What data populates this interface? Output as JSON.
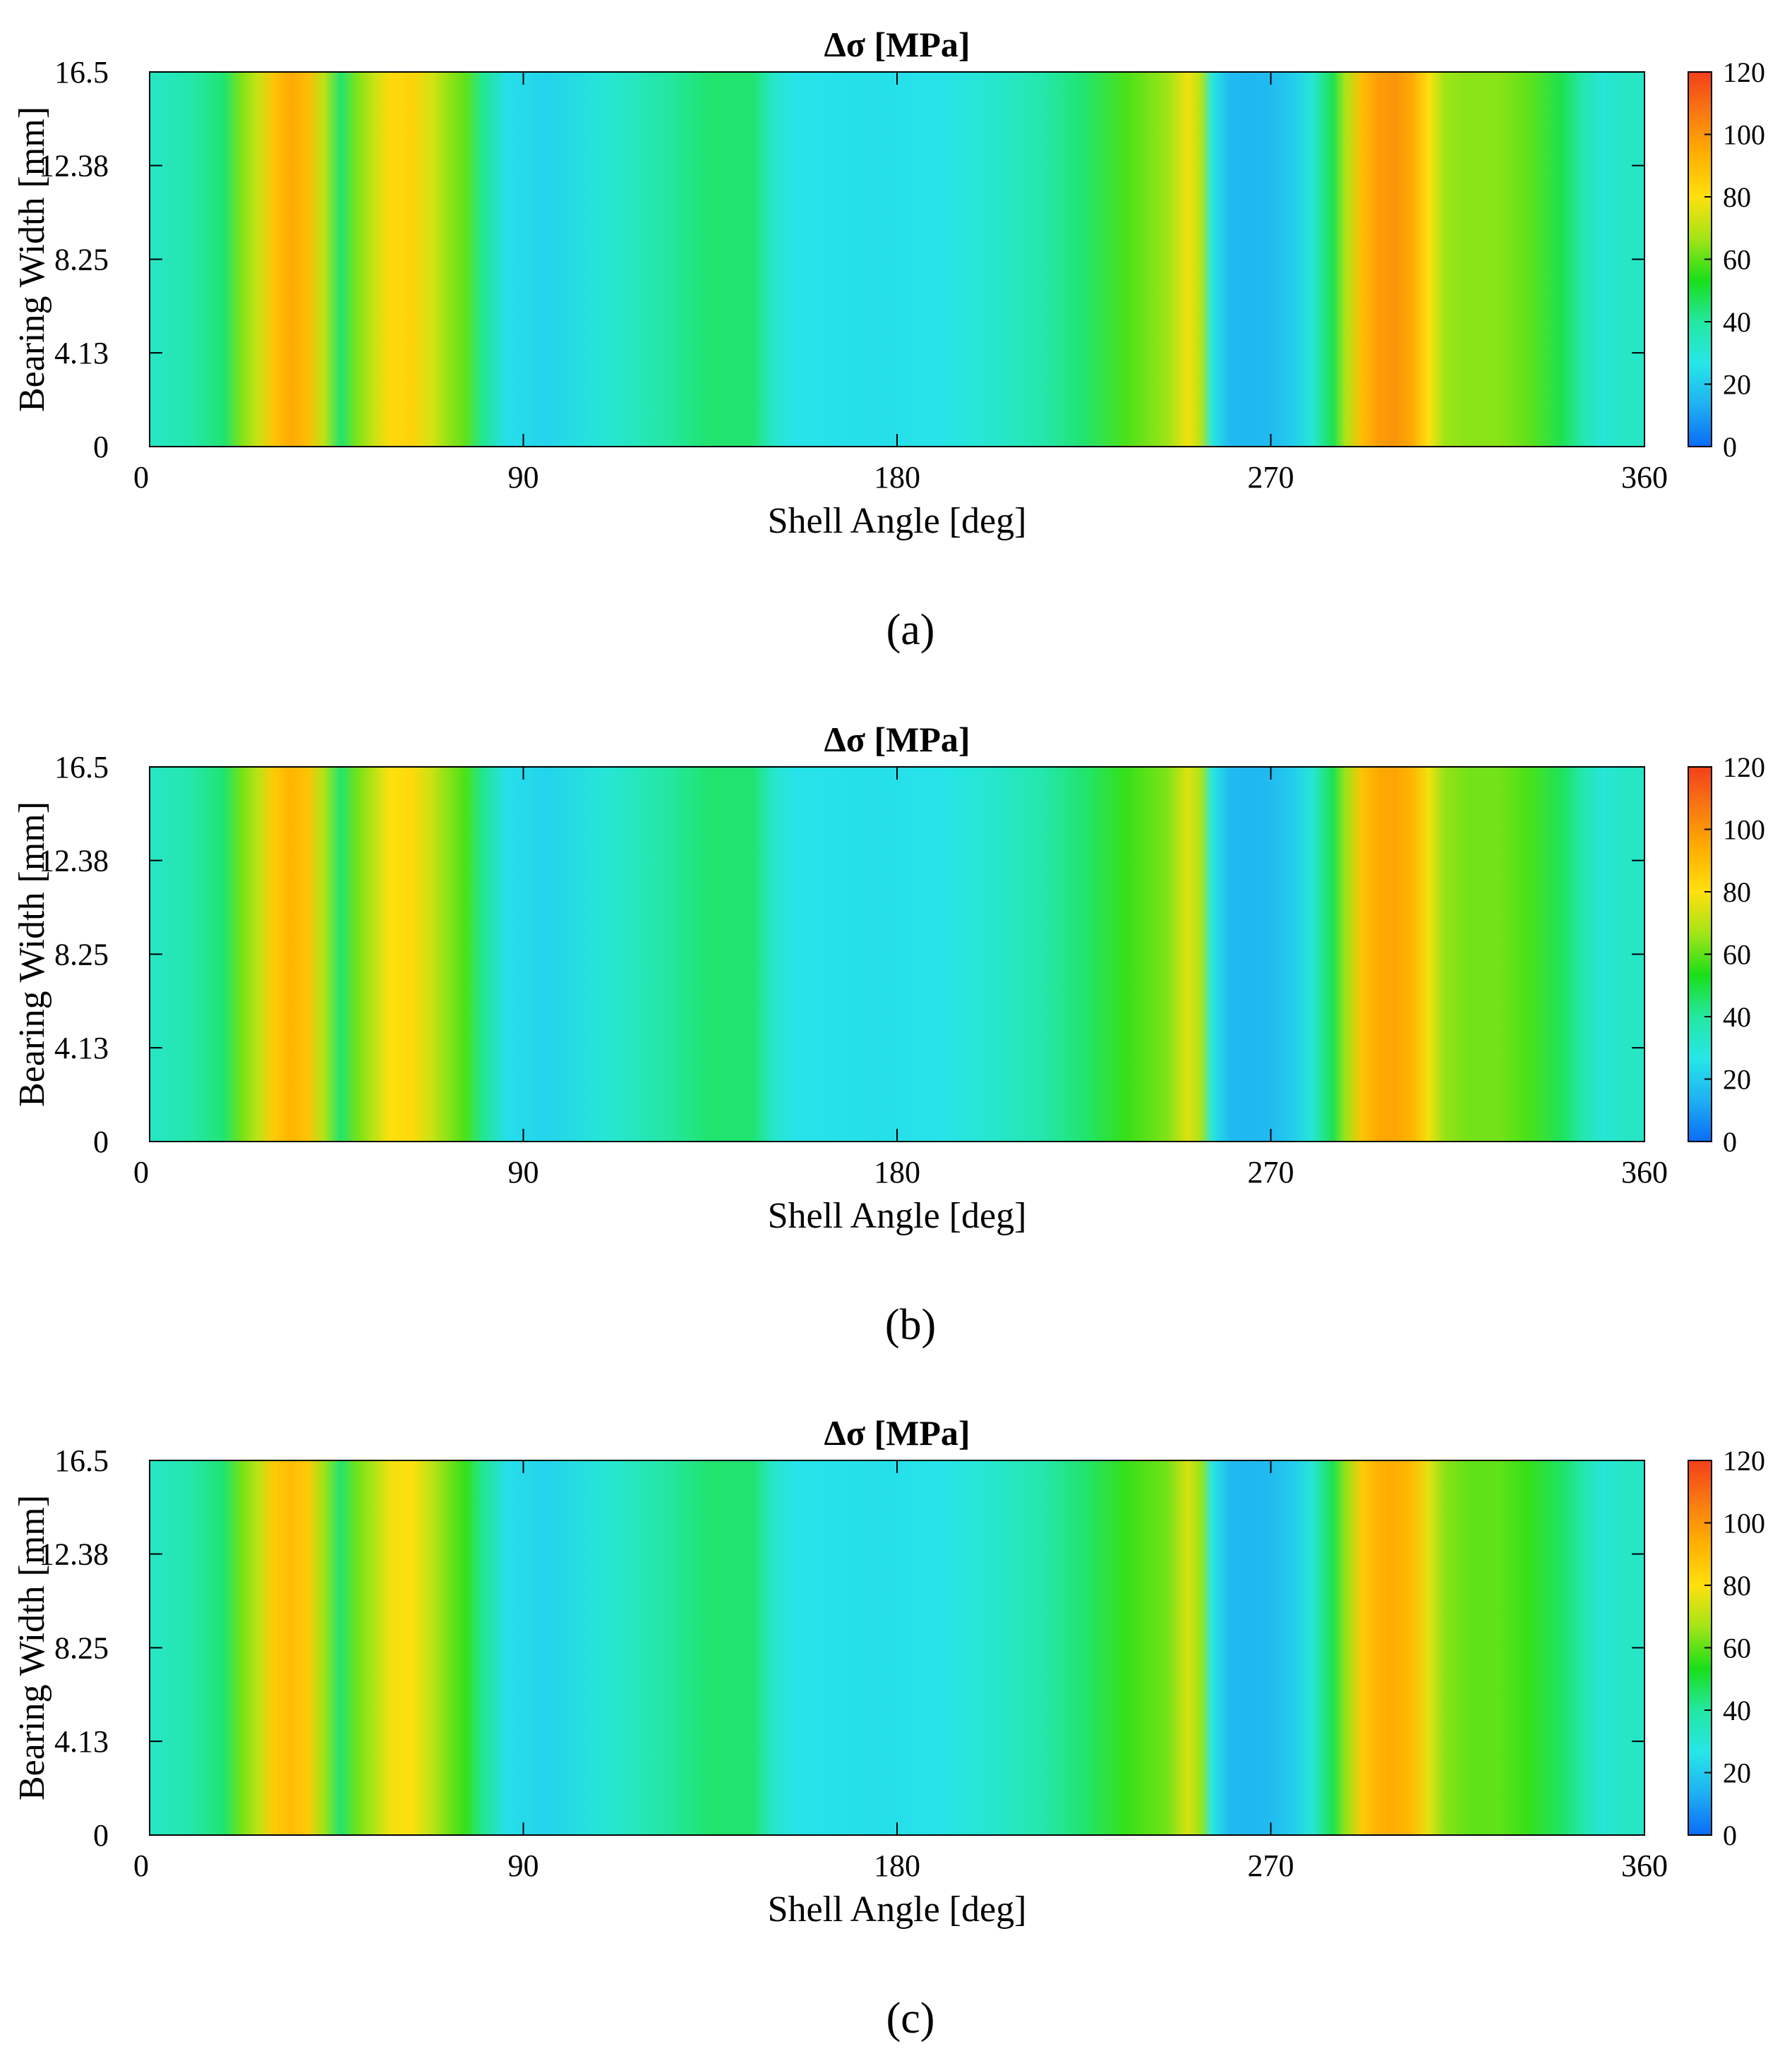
{
  "colors": {
    "colormap": [
      "#0a6cf7",
      "#1fb0f2",
      "#27e6e8",
      "#24e7a1",
      "#19df19",
      "#a4e417",
      "#ffe00e",
      "#ffb000",
      "#f97a12",
      "#f3401a"
    ],
    "axis": "#000000",
    "background": "#ffffff"
  },
  "chart_data": [
    {
      "type": "heatmap",
      "panel_label": "(a)",
      "title": "Δσ [MPa]",
      "xlabel": "Shell Angle [deg]",
      "ylabel": "Bearing Width [mm]",
      "xlim": [
        0,
        360
      ],
      "ylim": [
        0,
        16.5
      ],
      "xticks": [
        0,
        90,
        180,
        270,
        360
      ],
      "xtick_labels": [
        "0",
        "90",
        "180",
        "270",
        "360"
      ],
      "yticks": [
        0,
        4.13,
        8.25,
        12.38,
        16.5
      ],
      "ytick_labels": [
        "0",
        "4.13",
        "8.25",
        "12.38",
        "16.5"
      ],
      "colorbar": {
        "min": 0,
        "max": 120,
        "ticks": [
          0,
          20,
          40,
          60,
          80,
          100,
          120
        ],
        "tick_labels": [
          "0",
          "20",
          "40",
          "60",
          "80",
          "100",
          "120"
        ]
      },
      "angle_profile_deg": [
        0,
        10,
        18,
        22,
        26,
        30,
        34,
        38,
        42,
        46,
        50,
        54,
        58,
        63,
        68,
        72,
        76,
        80,
        86,
        95,
        110,
        125,
        135,
        145,
        150,
        155,
        175,
        190,
        200,
        215,
        225,
        235,
        245,
        250,
        253,
        256,
        260,
        265,
        270,
        275,
        280,
        285,
        288,
        292,
        296,
        300,
        304,
        308,
        312,
        318,
        325,
        332,
        340,
        345,
        350,
        355,
        360
      ],
      "delta_sigma_mpa": [
        33,
        38,
        45,
        63,
        72,
        88,
        95,
        90,
        70,
        45,
        63,
        72,
        82,
        84,
        74,
        65,
        60,
        42,
        25,
        22,
        30,
        40,
        45,
        45,
        33,
        26,
        25,
        26,
        30,
        38,
        45,
        58,
        66,
        78,
        70,
        28,
        16,
        15,
        16,
        20,
        30,
        48,
        68,
        90,
        98,
        100,
        95,
        80,
        66,
        64,
        64,
        60,
        48,
        38,
        30,
        33,
        33
      ]
    },
    {
      "type": "heatmap",
      "panel_label": "(b)",
      "title": "Δσ [MPa]",
      "xlabel": "Shell Angle [deg]",
      "ylabel": "Bearing Width [mm]",
      "xlim": [
        0,
        360
      ],
      "ylim": [
        0,
        16.5
      ],
      "xticks": [
        0,
        90,
        180,
        270,
        360
      ],
      "xtick_labels": [
        "0",
        "90",
        "180",
        "270",
        "360"
      ],
      "yticks": [
        0,
        4.13,
        8.25,
        12.38,
        16.5
      ],
      "ytick_labels": [
        "0",
        "4.13",
        "8.25",
        "12.38",
        "16.5"
      ],
      "colorbar": {
        "min": 0,
        "max": 120,
        "ticks": [
          0,
          20,
          40,
          60,
          80,
          100,
          120
        ],
        "tick_labels": [
          "0",
          "20",
          "40",
          "60",
          "80",
          "100",
          "120"
        ]
      },
      "angle_profile_deg": [
        0,
        10,
        18,
        22,
        26,
        30,
        34,
        38,
        42,
        46,
        50,
        54,
        58,
        63,
        68,
        72,
        76,
        80,
        86,
        95,
        110,
        125,
        135,
        145,
        150,
        155,
        175,
        190,
        200,
        215,
        225,
        235,
        245,
        250,
        253,
        256,
        260,
        265,
        270,
        275,
        280,
        285,
        288,
        292,
        296,
        300,
        304,
        308,
        312,
        318,
        325,
        332,
        340,
        345,
        350,
        355,
        360
      ],
      "delta_sigma_mpa": [
        33,
        38,
        45,
        62,
        70,
        86,
        92,
        88,
        68,
        45,
        62,
        70,
        80,
        82,
        72,
        64,
        58,
        42,
        25,
        22,
        30,
        40,
        45,
        45,
        33,
        26,
        25,
        26,
        30,
        38,
        45,
        56,
        63,
        75,
        68,
        28,
        16,
        15,
        16,
        20,
        30,
        48,
        66,
        88,
        95,
        96,
        92,
        78,
        65,
        62,
        62,
        58,
        47,
        38,
        30,
        33,
        33
      ]
    },
    {
      "type": "heatmap",
      "panel_label": "(c)",
      "title": "Δσ [MPa]",
      "xlabel": "Shell Angle [deg]",
      "ylabel": "Bearing Width [mm]",
      "xlim": [
        0,
        360
      ],
      "ylim": [
        0,
        16.5
      ],
      "xticks": [
        0,
        90,
        180,
        270,
        360
      ],
      "xtick_labels": [
        "0",
        "90",
        "180",
        "270",
        "360"
      ],
      "yticks": [
        0,
        4.13,
        8.25,
        12.38,
        16.5
      ],
      "ytick_labels": [
        "0",
        "4.13",
        "8.25",
        "12.38",
        "16.5"
      ],
      "colorbar": {
        "min": 0,
        "max": 120,
        "ticks": [
          0,
          20,
          40,
          60,
          80,
          100,
          120
        ],
        "tick_labels": [
          "0",
          "20",
          "40",
          "60",
          "80",
          "100",
          "120"
        ]
      },
      "angle_profile_deg": [
        0,
        10,
        18,
        22,
        26,
        30,
        34,
        38,
        42,
        46,
        50,
        54,
        58,
        63,
        68,
        72,
        76,
        80,
        86,
        95,
        110,
        125,
        135,
        145,
        150,
        155,
        175,
        190,
        200,
        215,
        225,
        235,
        245,
        250,
        253,
        256,
        260,
        265,
        270,
        275,
        280,
        285,
        288,
        292,
        296,
        300,
        304,
        308,
        312,
        318,
        325,
        332,
        340,
        345,
        350,
        355,
        360
      ],
      "delta_sigma_mpa": [
        33,
        38,
        45,
        62,
        70,
        86,
        90,
        86,
        66,
        45,
        62,
        68,
        78,
        80,
        70,
        62,
        56,
        42,
        25,
        22,
        30,
        40,
        45,
        45,
        33,
        26,
        25,
        26,
        30,
        38,
        45,
        56,
        62,
        74,
        66,
        28,
        16,
        15,
        16,
        20,
        30,
        48,
        65,
        86,
        93,
        94,
        90,
        76,
        64,
        60,
        60,
        56,
        46,
        38,
        30,
        33,
        33
      ]
    }
  ]
}
